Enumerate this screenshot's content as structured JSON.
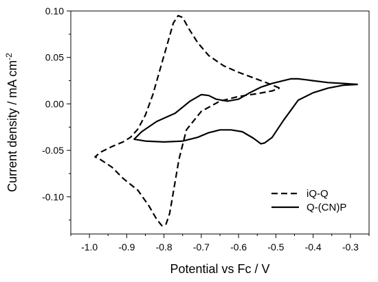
{
  "chart_data": {
    "type": "line",
    "xlabel": "Potential vs Fc / V",
    "ylabel_main": "Current density / mA cm",
    "ylabel_sup": "-2",
    "xlim": [
      -1.05,
      -0.25
    ],
    "ylim": [
      -0.14,
      0.1
    ],
    "xticks": [
      -1.0,
      -0.9,
      -0.8,
      -0.7,
      -0.6,
      -0.5,
      -0.4,
      -0.3
    ],
    "xtick_labels": [
      "-1.0",
      "-0.9",
      "-0.8",
      "-0.7",
      "-0.6",
      "-0.5",
      "-0.4",
      "-0.3"
    ],
    "yticks": [
      0.1,
      0.05,
      0.0,
      -0.05,
      -0.1
    ],
    "ytick_labels": [
      "0.10",
      "0.05",
      "0.00",
      "-0.05",
      "-0.10"
    ],
    "grid": false,
    "legend_position": "bottom-right",
    "series": [
      {
        "name": "iQ-Q",
        "style": "dashed",
        "color": "#000000",
        "x": [
          -0.49,
          -0.52,
          -0.56,
          -0.6,
          -0.64,
          -0.68,
          -0.71,
          -0.735,
          -0.75,
          -0.762,
          -0.775,
          -0.79,
          -0.81,
          -0.83,
          -0.85,
          -0.87,
          -0.89,
          -0.91,
          -0.94,
          -0.97,
          -0.985,
          -0.97,
          -0.94,
          -0.91,
          -0.87,
          -0.84,
          -0.82,
          -0.806,
          -0.795,
          -0.785,
          -0.775,
          -0.76,
          -0.74,
          -0.7,
          -0.65,
          -0.6,
          -0.55,
          -0.51,
          -0.49
        ],
        "y": [
          0.017,
          0.022,
          0.028,
          0.034,
          0.041,
          0.052,
          0.066,
          0.082,
          0.093,
          0.095,
          0.087,
          0.066,
          0.038,
          0.01,
          -0.012,
          -0.027,
          -0.036,
          -0.041,
          -0.046,
          -0.052,
          -0.057,
          -0.06,
          -0.068,
          -0.08,
          -0.093,
          -0.11,
          -0.124,
          -0.131,
          -0.13,
          -0.118,
          -0.095,
          -0.06,
          -0.028,
          -0.008,
          0.003,
          0.008,
          0.011,
          0.014,
          0.017
        ]
      },
      {
        "name": "Q-(CN)P",
        "style": "solid",
        "color": "#000000",
        "x": [
          -0.28,
          -0.32,
          -0.36,
          -0.4,
          -0.44,
          -0.48,
          -0.51,
          -0.53,
          -0.54,
          -0.56,
          -0.59,
          -0.62,
          -0.65,
          -0.68,
          -0.71,
          -0.75,
          -0.8,
          -0.85,
          -0.88,
          -0.86,
          -0.82,
          -0.77,
          -0.73,
          -0.7,
          -0.68,
          -0.66,
          -0.63,
          -0.6,
          -0.57,
          -0.54,
          -0.51,
          -0.48,
          -0.46,
          -0.44,
          -0.42,
          -0.4,
          -0.36,
          -0.32,
          -0.28
        ],
        "y": [
          0.021,
          0.02,
          0.017,
          0.012,
          0.004,
          -0.018,
          -0.036,
          -0.042,
          -0.043,
          -0.037,
          -0.03,
          -0.028,
          -0.028,
          -0.031,
          -0.036,
          -0.04,
          -0.041,
          -0.04,
          -0.038,
          -0.03,
          -0.019,
          -0.01,
          0.003,
          0.01,
          0.009,
          0.005,
          0.003,
          0.005,
          0.012,
          0.018,
          0.022,
          0.025,
          0.027,
          0.027,
          0.026,
          0.025,
          0.023,
          0.022,
          0.021
        ]
      }
    ]
  }
}
